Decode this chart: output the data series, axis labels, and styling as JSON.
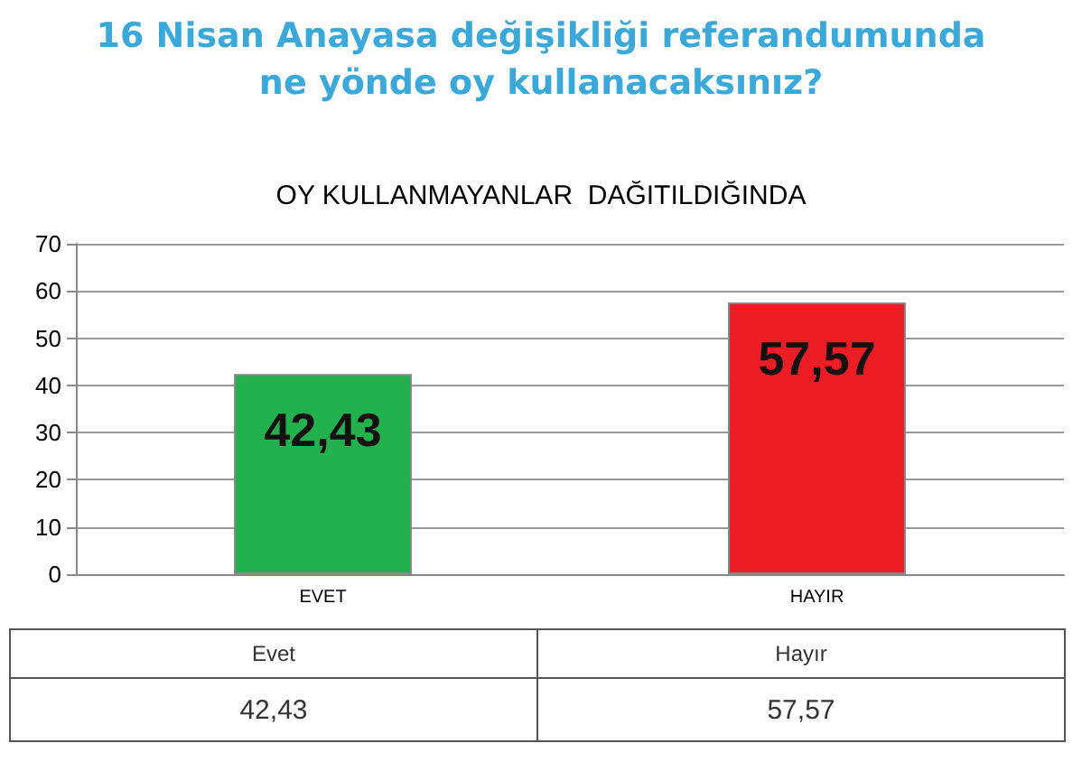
{
  "chart_data": {
    "type": "bar",
    "title": "16 Nisan Anayasa değişikliği referandumunda\nne yönde oy kullanacaksınız?",
    "subtitle": "OY KULLANMAYANLAR  DAĞITILDIĞINDA",
    "categories": [
      "EVET",
      "HAYIR"
    ],
    "values": [
      42.43,
      57.57
    ],
    "colors": [
      "#22b14c",
      "#ee1c24"
    ],
    "value_labels": [
      "42,43",
      "57,57"
    ],
    "annotations": [
      "Evet",
      "Hayır"
    ],
    "ylim": [
      0,
      70
    ],
    "yticks": [
      0,
      10,
      20,
      30,
      40,
      50,
      60,
      70
    ],
    "grid": "y"
  }
}
